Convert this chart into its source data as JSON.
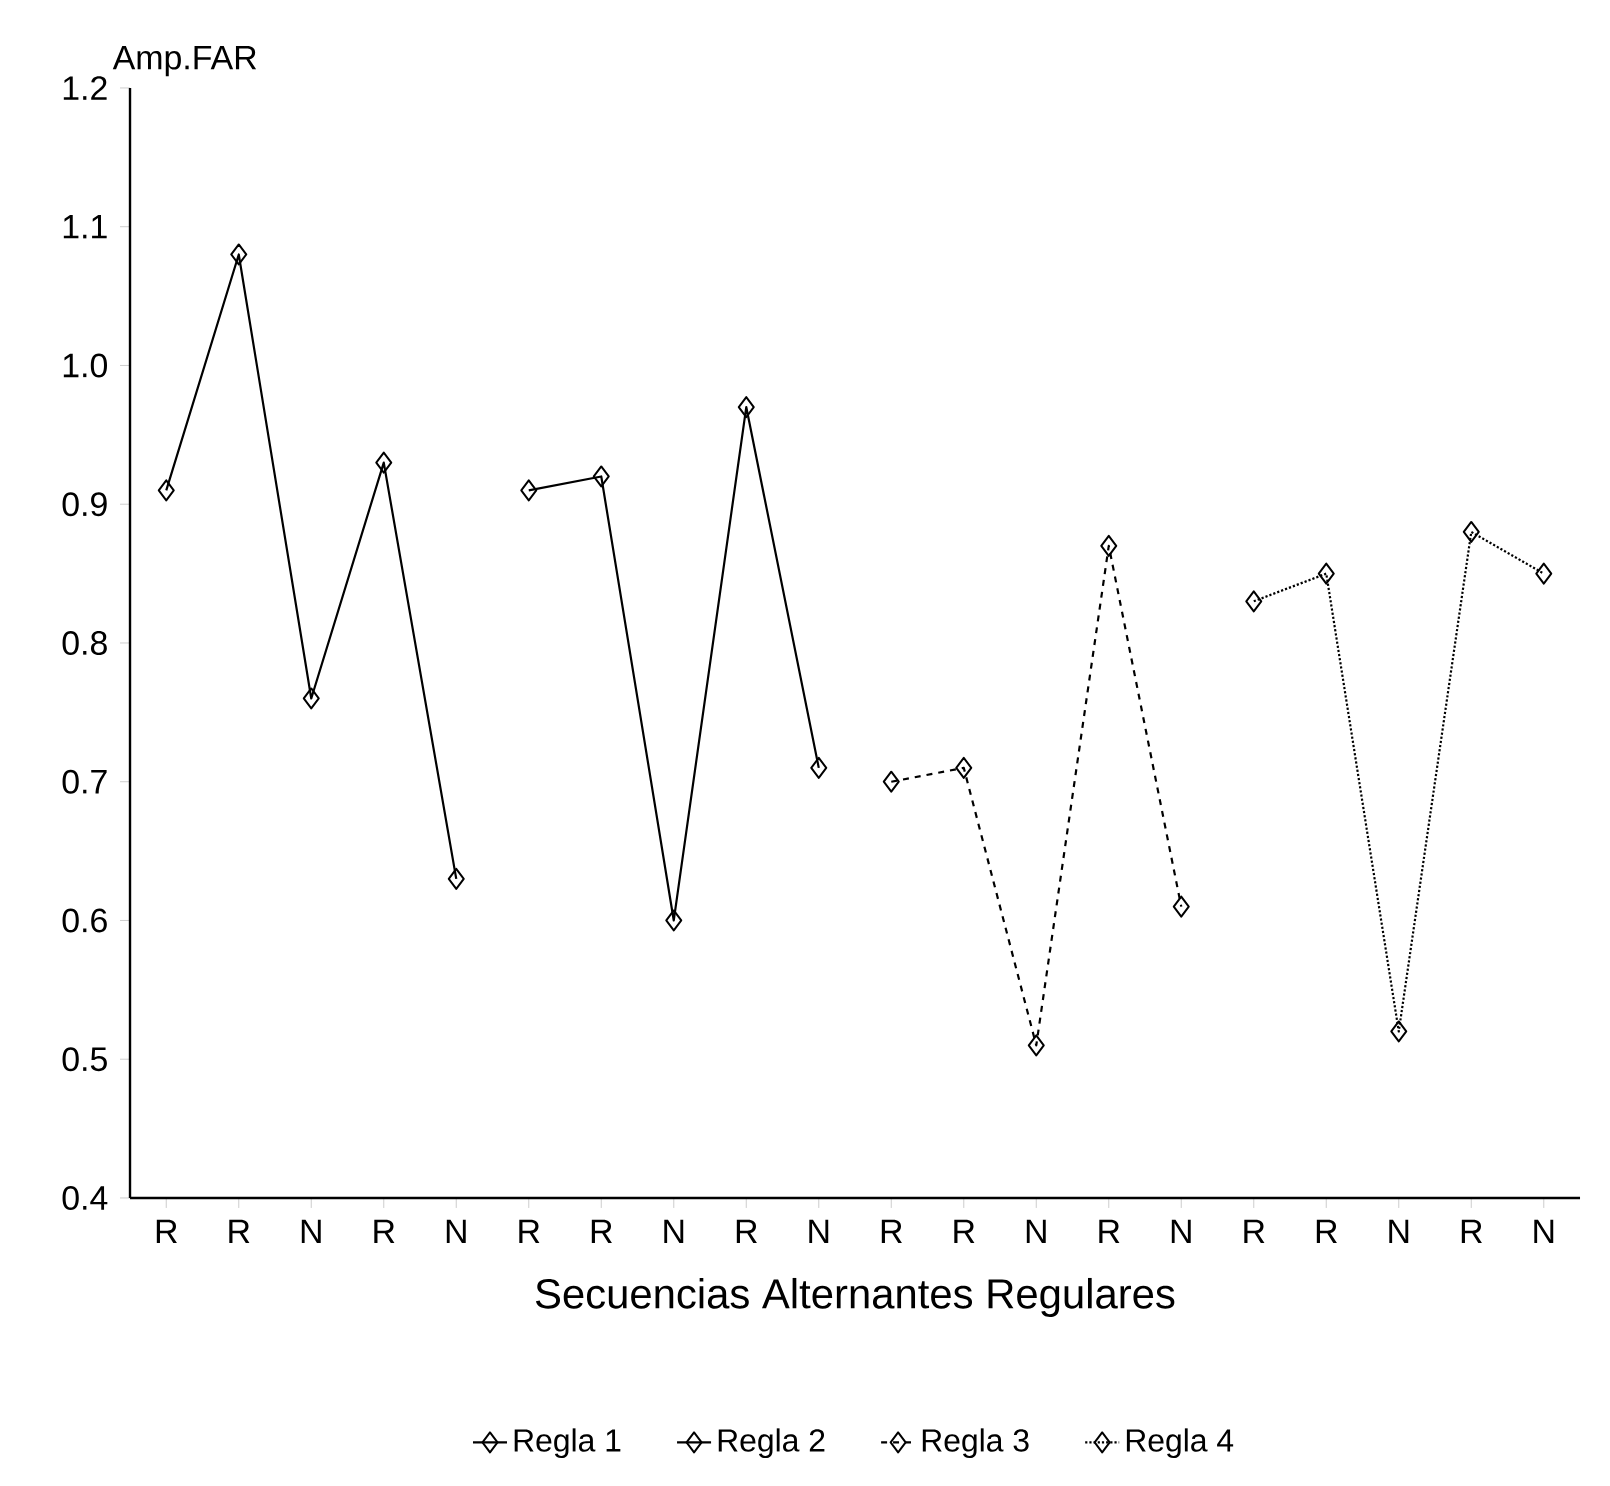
{
  "chart_data": {
    "type": "line",
    "ylabel": "Amp.FAR",
    "xlabel": "Secuencias Alternantes Regulares",
    "categories": [
      "R",
      "R",
      "N",
      "R",
      "N",
      "R",
      "R",
      "N",
      "R",
      "N",
      "R",
      "R",
      "N",
      "R",
      "N",
      "R",
      "R",
      "N",
      "R",
      "N"
    ],
    "series": [
      {
        "name": "Regla 1",
        "color": "#000000",
        "line_style": "solid",
        "values": [
          0.91,
          1.08,
          0.76,
          0.93,
          0.63,
          null,
          null,
          null,
          null,
          null,
          null,
          null,
          null,
          null,
          null,
          null,
          null,
          null,
          null,
          null
        ]
      },
      {
        "name": "Regla 2",
        "color": "#000000",
        "line_style": "solid",
        "values": [
          null,
          null,
          null,
          null,
          null,
          0.91,
          0.92,
          0.6,
          0.97,
          0.71,
          null,
          null,
          null,
          null,
          null,
          null,
          null,
          null,
          null,
          null
        ]
      },
      {
        "name": "Regla 3",
        "color": "#000000",
        "line_style": "dashed",
        "values": [
          null,
          null,
          null,
          null,
          null,
          null,
          null,
          null,
          null,
          null,
          0.7,
          0.71,
          0.51,
          0.87,
          0.61,
          null,
          null,
          null,
          null,
          null
        ]
      },
      {
        "name": "Regla 4",
        "color": "#000000",
        "line_style": "dotted",
        "values": [
          null,
          null,
          null,
          null,
          null,
          null,
          null,
          null,
          null,
          null,
          null,
          null,
          null,
          null,
          null,
          0.83,
          0.85,
          0.52,
          0.88,
          0.85
        ]
      }
    ],
    "ylim": [
      0.4,
      1.2
    ],
    "yticks": [
      0.4,
      0.5,
      0.6,
      0.7,
      0.8,
      0.9,
      {
        "value": 1.0,
        "label": "1.0"
      },
      1.1,
      1.2
    ],
    "marker": "diamond",
    "legend": "bottom",
    "grid": false
  }
}
